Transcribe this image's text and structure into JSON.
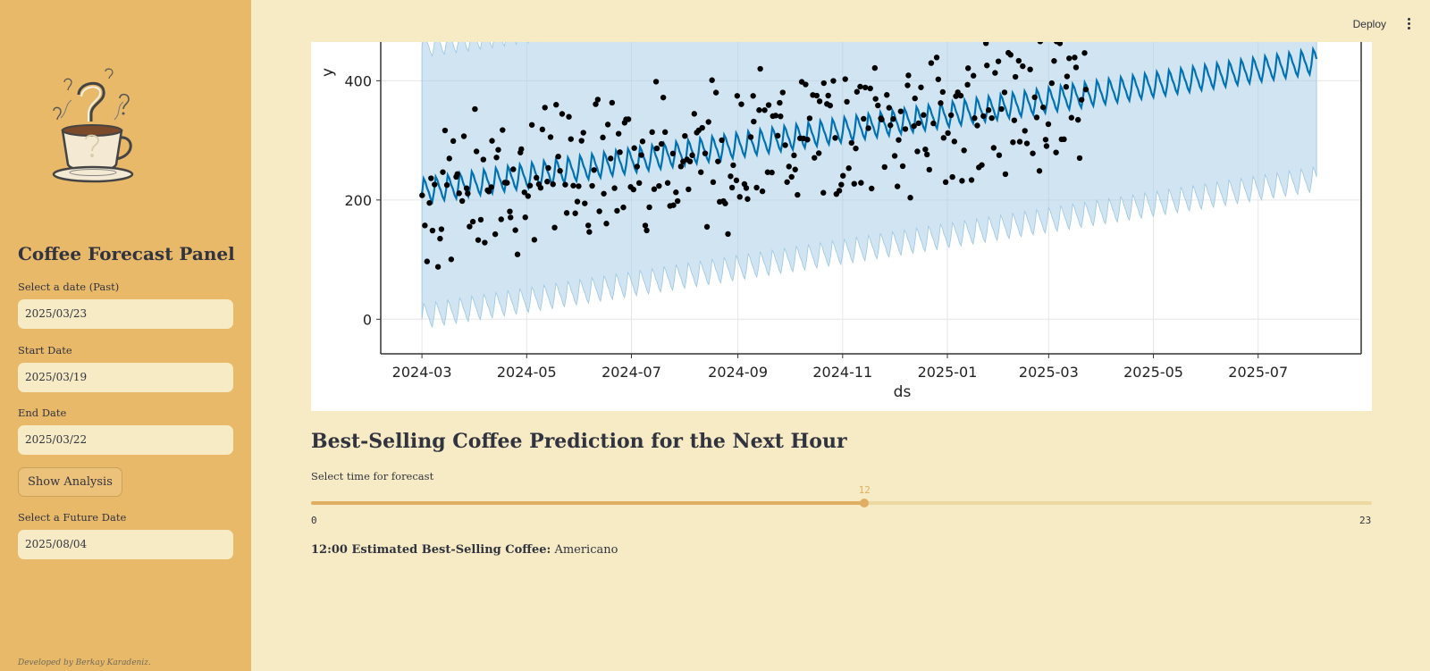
{
  "sidebar": {
    "title": "Coffee Forecast Panel",
    "past_date": {
      "label": "Select a date (Past)",
      "value": "2025/03/23"
    },
    "start_date": {
      "label": "Start Date",
      "value": "2025/03/19"
    },
    "end_date": {
      "label": "End Date",
      "value": "2025/03/22"
    },
    "show_button": "Show Analysis",
    "future_date": {
      "label": "Select a Future Date",
      "value": "2025/08/04"
    },
    "footer": "Developed by Berkay Karadeniz."
  },
  "topbar": {
    "deploy": "Deploy"
  },
  "chart_data": {
    "type": "line",
    "xlabel": "ds",
    "ylabel": "y",
    "x_ticks": [
      "2024-03",
      "2024-05",
      "2024-07",
      "2024-09",
      "2024-11",
      "2025-01",
      "2025-03",
      "2025-05",
      "2025-07"
    ],
    "y_ticks": [
      0,
      200,
      400
    ],
    "xlim": [
      "2024-02-06",
      "2025-08-30"
    ],
    "ylim_visible": [
      -58,
      465
    ],
    "grid": true,
    "series": [
      {
        "kind": "forecast",
        "x_start": "2024-03-01",
        "x_end": "2025-08-04",
        "y_start": 210,
        "y_end": 428,
        "weekly_amplitude": 40,
        "color": "#0072b2"
      },
      {
        "kind": "uncertainty",
        "lower_start": 0,
        "lower_end": 230,
        "upper_start": 455,
        "upper_end": 660,
        "color": "#a9cde6"
      },
      {
        "kind": "observed",
        "x_start": "2024-03-01",
        "x_end": "2025-03-23",
        "y_center": 250,
        "spread": 120,
        "color": "#000000"
      }
    ]
  },
  "main": {
    "title": "Best-Selling Coffee Prediction for the Next Hour",
    "slider": {
      "label": "Select time for forecast",
      "min": "0",
      "max": "23",
      "value": "12",
      "fraction": 0.5217
    },
    "result_prefix": "12:00 Estimated Best-Selling Coffee:",
    "result_value": "Americano"
  }
}
